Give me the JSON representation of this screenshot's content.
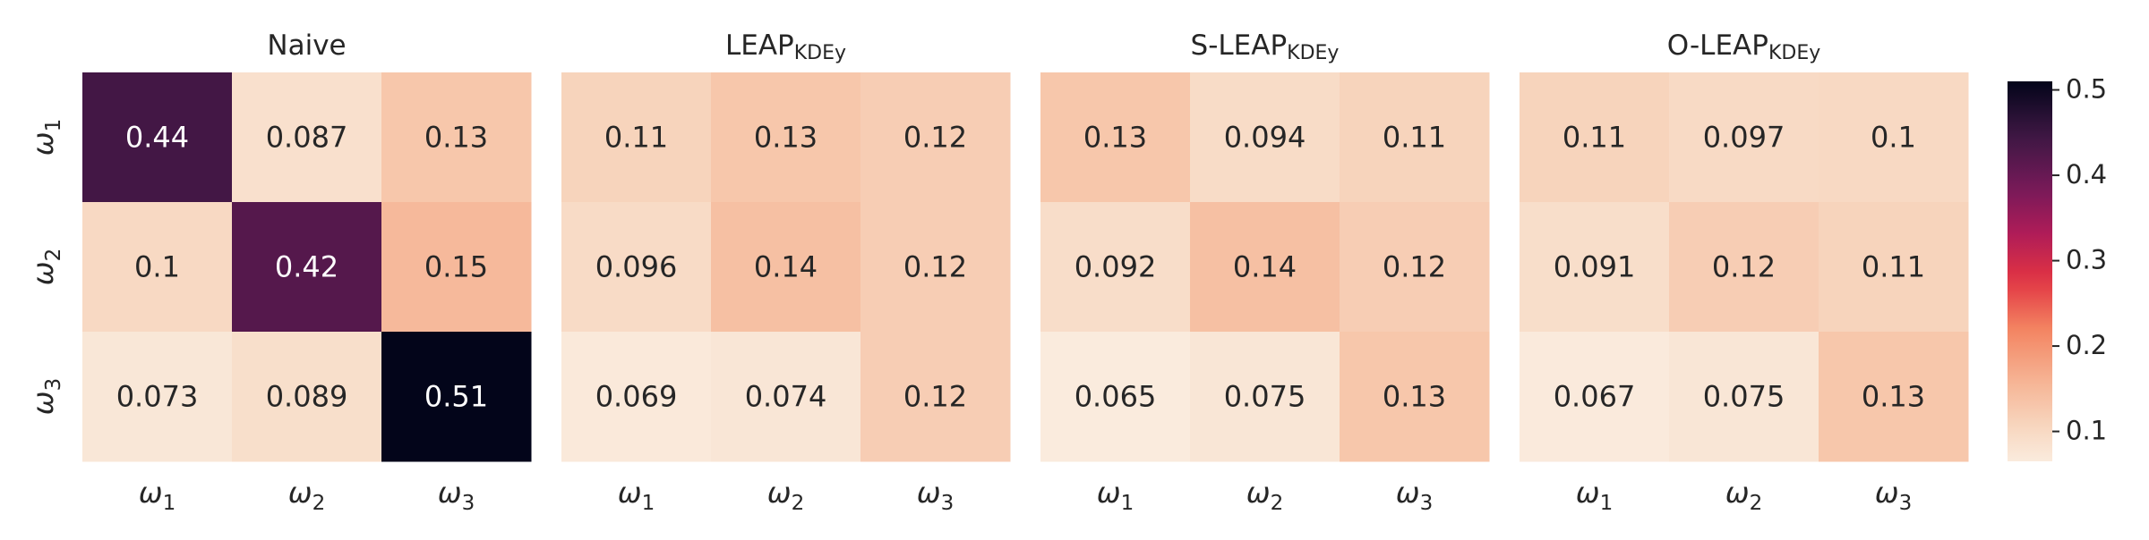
{
  "chart_data": {
    "type": "heatmap",
    "row_labels": [
      "ω1",
      "ω2",
      "ω3"
    ],
    "col_labels": [
      "ω1",
      "ω2",
      "ω3"
    ],
    "panels": [
      {
        "title": "Naive",
        "title_sub": "",
        "values": [
          [
            0.44,
            0.087,
            0.13
          ],
          [
            0.1,
            0.42,
            0.15
          ],
          [
            0.073,
            0.089,
            0.51
          ]
        ],
        "value_labels": [
          [
            "0.44",
            "0.087",
            "0.13"
          ],
          [
            "0.1",
            "0.42",
            "0.15"
          ],
          [
            "0.073",
            "0.089",
            "0.51"
          ]
        ]
      },
      {
        "title": "LEAP",
        "title_sub": "KDEy",
        "values": [
          [
            0.11,
            0.13,
            0.12
          ],
          [
            0.096,
            0.14,
            0.12
          ],
          [
            0.069,
            0.074,
            0.12
          ]
        ],
        "value_labels": [
          [
            "0.11",
            "0.13",
            "0.12"
          ],
          [
            "0.096",
            "0.14",
            "0.12"
          ],
          [
            "0.069",
            "0.074",
            "0.12"
          ]
        ]
      },
      {
        "title": "S-LEAP",
        "title_sub": "KDEy",
        "values": [
          [
            0.13,
            0.094,
            0.11
          ],
          [
            0.092,
            0.14,
            0.12
          ],
          [
            0.065,
            0.075,
            0.13
          ]
        ],
        "value_labels": [
          [
            "0.13",
            "0.094",
            "0.11"
          ],
          [
            "0.092",
            "0.14",
            "0.12"
          ],
          [
            "0.065",
            "0.075",
            "0.13"
          ]
        ]
      },
      {
        "title": "O-LEAP",
        "title_sub": "KDEy",
        "values": [
          [
            0.11,
            0.097,
            0.1
          ],
          [
            0.091,
            0.12,
            0.11
          ],
          [
            0.067,
            0.075,
            0.13
          ]
        ],
        "value_labels": [
          [
            "0.11",
            "0.097",
            "0.1"
          ],
          [
            "0.091",
            "0.12",
            "0.11"
          ],
          [
            "0.067",
            "0.075",
            "0.13"
          ]
        ]
      }
    ],
    "colorbar": {
      "min": 0.065,
      "max": 0.51,
      "ticks": [
        0.1,
        0.2,
        0.3,
        0.4,
        0.5
      ],
      "tick_labels": [
        "0.1",
        "0.2",
        "0.3",
        "0.4",
        "0.5"
      ],
      "colormap": "rocket_r"
    },
    "colors": {
      "text_dark": "#262626",
      "text_light": "#ffffff"
    }
  }
}
